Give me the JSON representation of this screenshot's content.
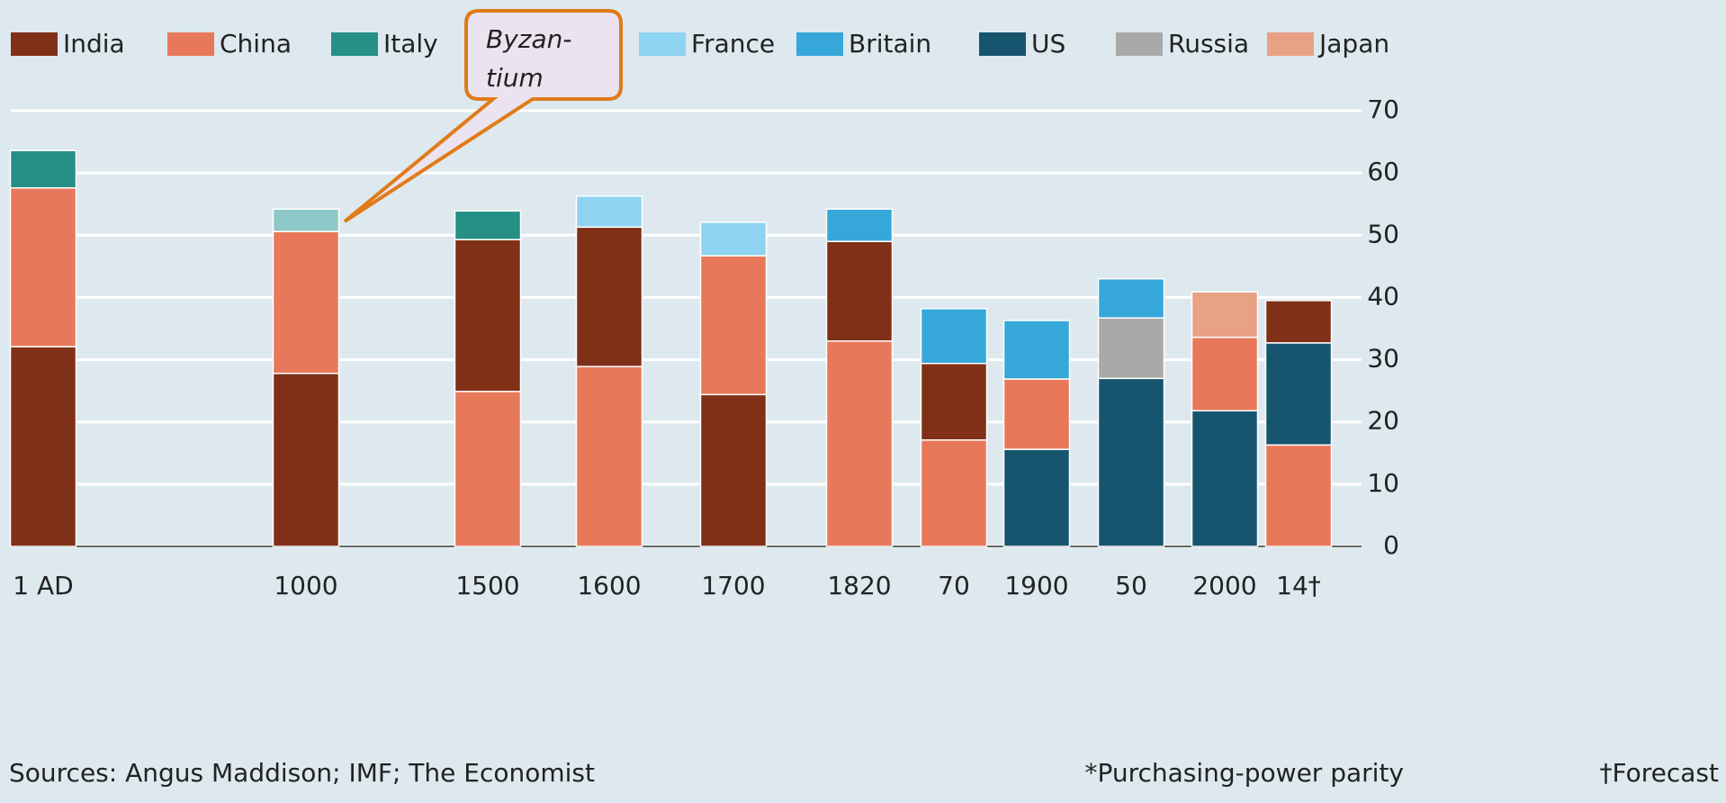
{
  "chart_data": {
    "type": "stacked_bar",
    "categories": [
      "1 AD",
      "1000",
      "1500",
      "1600",
      "1700",
      "1820",
      "70",
      "1900",
      "50",
      "2000",
      "14†"
    ],
    "series": [
      {
        "name": "India",
        "color": "#7f3017",
        "values": [
          32.1,
          27.8,
          24.4,
          22.4,
          24.4,
          16.0,
          12.3,
          null,
          null,
          null,
          6.8
        ]
      },
      {
        "name": "China",
        "color": "#e8785a",
        "values": [
          25.5,
          22.8,
          24.9,
          28.9,
          22.3,
          33.0,
          17.1,
          11.3,
          null,
          11.8,
          16.3
        ]
      },
      {
        "name": "Italy",
        "color": "#268f86",
        "values": [
          6.0,
          null,
          4.6,
          null,
          null,
          null,
          null,
          null,
          null,
          null,
          null
        ]
      },
      {
        "color": "#8ec8c8",
        "values": [
          null,
          3.6,
          null,
          null,
          null,
          null,
          null,
          null,
          null,
          null,
          null
        ]
      },
      {
        "name": "France",
        "color": "#8fd3f2",
        "values": [
          null,
          null,
          null,
          5.0,
          5.4,
          null,
          null,
          null,
          null,
          null,
          null
        ]
      },
      {
        "name": "Britain",
        "color": "#36a7d9",
        "values": [
          null,
          null,
          null,
          null,
          null,
          5.2,
          8.8,
          9.4,
          6.3,
          null,
          null
        ]
      },
      {
        "name": "US",
        "color": "#17546e",
        "values": [
          null,
          null,
          null,
          null,
          null,
          null,
          null,
          15.6,
          27.0,
          21.8,
          16.4
        ]
      },
      {
        "name": "Russia",
        "color": "#a9a9a9",
        "values": [
          null,
          null,
          null,
          null,
          null,
          null,
          null,
          null,
          9.7,
          null,
          null
        ]
      },
      {
        "name": "Japan",
        "color": "#e8a185",
        "values": [
          null,
          null,
          null,
          null,
          null,
          null,
          null,
          null,
          null,
          7.3,
          null
        ]
      }
    ],
    "stack_order": [
      [
        0,
        1,
        2
      ],
      [
        0,
        1,
        3
      ],
      [
        1,
        0,
        2
      ],
      [
        1,
        0,
        4
      ],
      [
        0,
        1,
        4
      ],
      [
        1,
        0,
        5
      ],
      [
        1,
        0,
        5
      ],
      [
        6,
        1,
        5
      ],
      [
        6,
        7,
        5
      ],
      [
        6,
        1,
        8
      ],
      [
        1,
        6,
        0
      ]
    ],
    "annotation": {
      "series": 3,
      "text": [
        "Byzan-",
        "tium"
      ]
    },
    "ylim": [
      0,
      70
    ],
    "yticks": [
      0,
      10,
      20,
      30,
      40,
      50,
      60,
      70
    ],
    "grid": true,
    "source": "Sources: Angus Maddison; IMF; The Economist",
    "notes": [
      "*Purchasing-power parity",
      "†Forecast"
    ]
  }
}
